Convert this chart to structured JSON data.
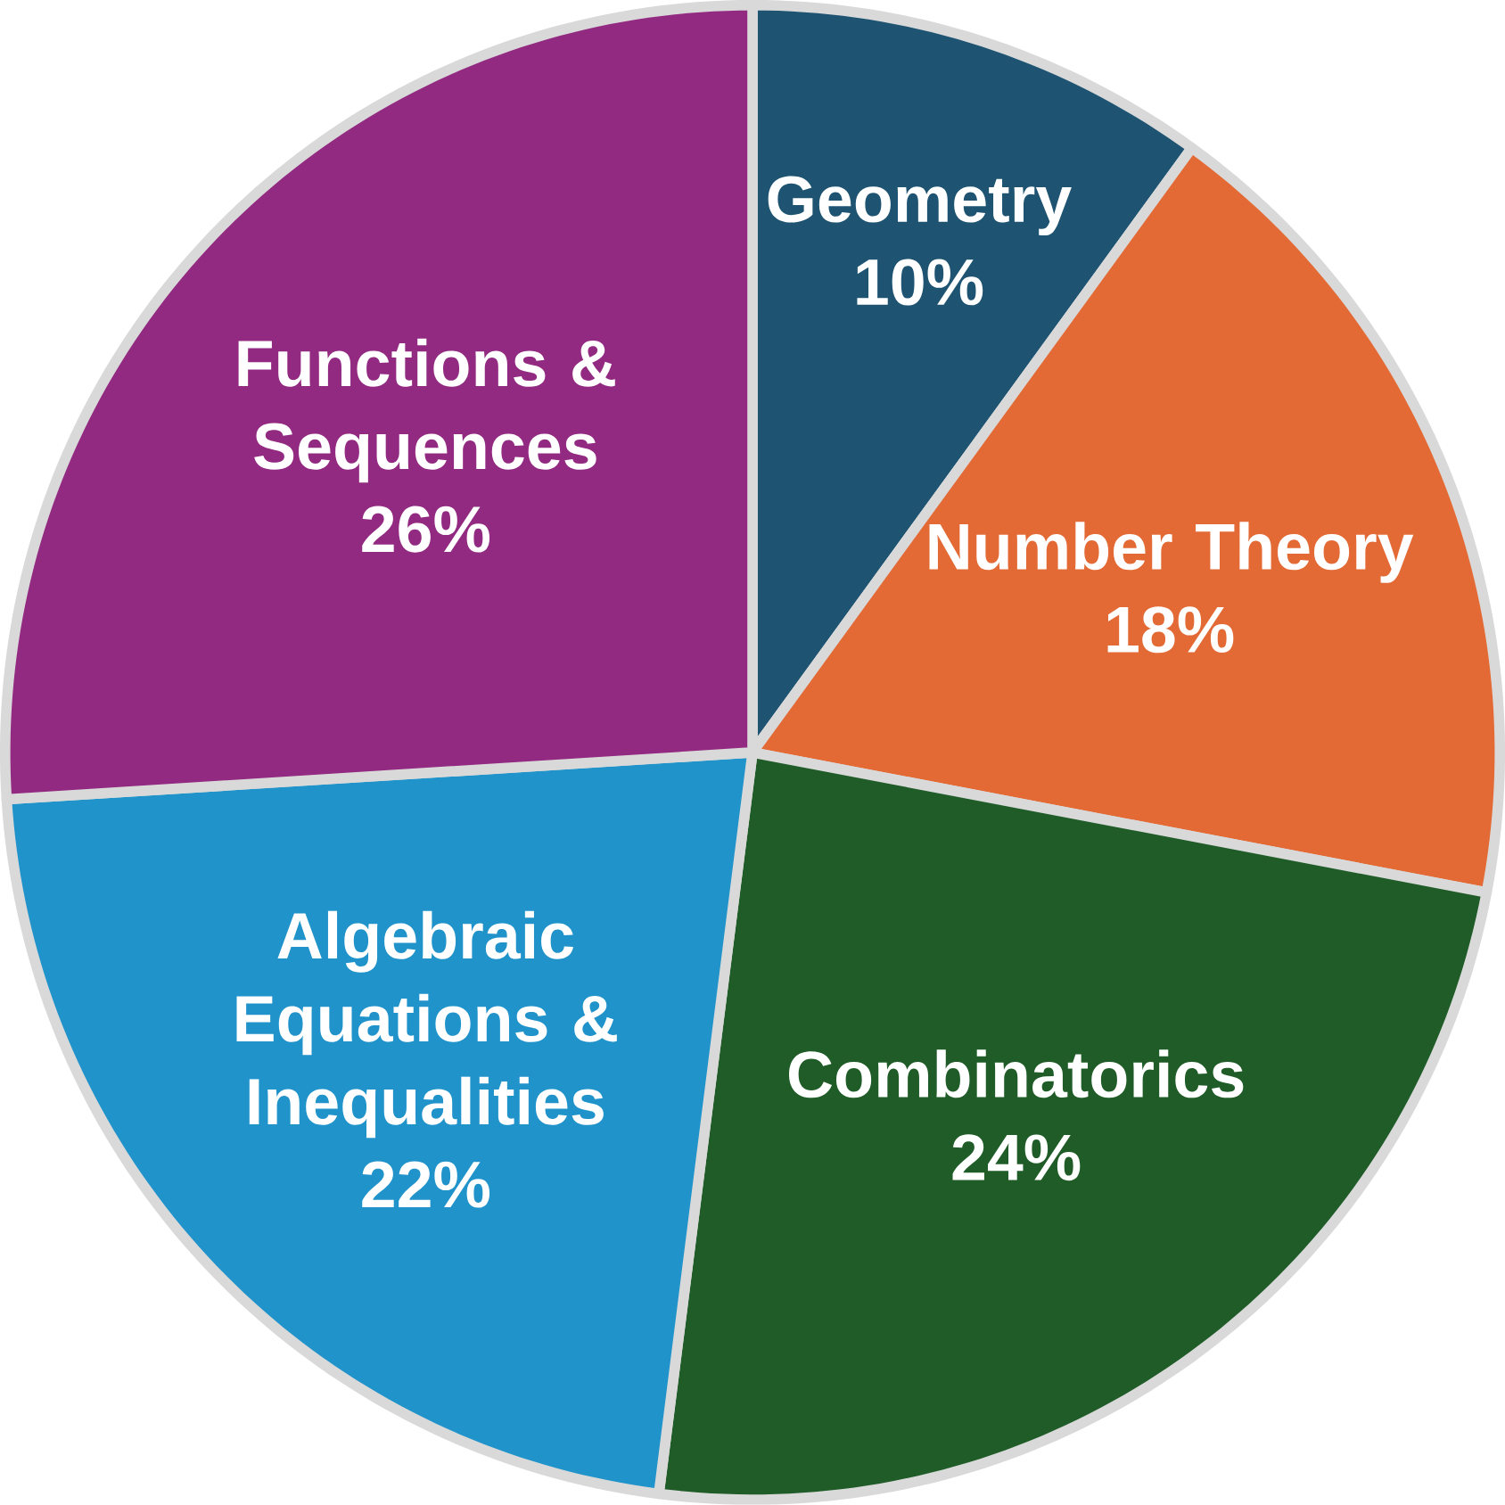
{
  "chart_data": {
    "type": "pie",
    "categories": [
      "Geometry",
      "Number Theory",
      "Combinatorics",
      "Algebraic Equations & Inequalities",
      "Functions & Sequences"
    ],
    "values": [
      10,
      18,
      24,
      22,
      26
    ],
    "value_labels": [
      "10%",
      "18%",
      "24%",
      "22%",
      "26%"
    ],
    "colors": [
      "#1e5472",
      "#e36a35",
      "#1f5c28",
      "#2093cb",
      "#932a82"
    ]
  }
}
